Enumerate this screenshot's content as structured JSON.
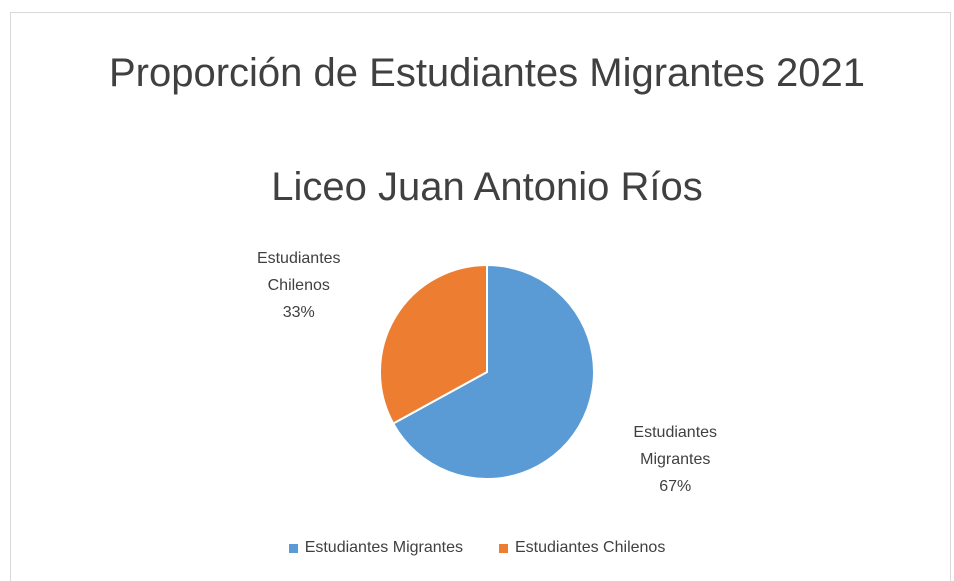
{
  "chart_data": {
    "type": "pie",
    "title": "Proporción de Estudiantes Migrantes 2021",
    "subtitle": "Liceo Juan Antonio Ríos",
    "categories": [
      "Estudiantes Migrantes",
      "Estudiantes Chilenos"
    ],
    "values": [
      67,
      33
    ],
    "value_labels": [
      "67%",
      "33%"
    ],
    "colors": [
      "#5b9bd5",
      "#ed7d31"
    ],
    "legend": "bottom"
  }
}
